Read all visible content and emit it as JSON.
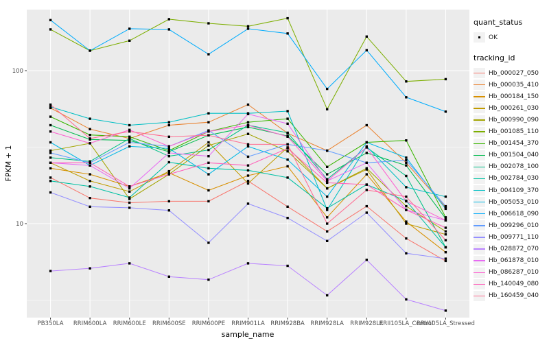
{
  "figure": {
    "background": "#FFFFFF",
    "panel_background": "#EBEBEB",
    "gridline_color": "#FFFFFF",
    "tick_color": "#333333",
    "tick_label_color": "#4D4D4D",
    "point_color": "#000000"
  },
  "chart_data": {
    "type": "line",
    "title": "",
    "xlabel": "sample_name",
    "ylabel": "FPKM + 1",
    "y_scale": "log10",
    "y_ticks": [
      10,
      100
    ],
    "y_minor_ticks": [
      3.1623,
      31.623
    ],
    "y_range": [
      2.4,
      250
    ],
    "grid": true,
    "legend_position": "right",
    "categories": [
      "PB350LA",
      "RRIM600LA",
      "RRIM600LE",
      "RRIM600SE",
      "RRIM600PE",
      "RRIM901LA",
      "RRIM928BA",
      "RRIM928LA",
      "RRIM928LE",
      "RRII105LA_Control",
      "RRII105LA_Stressed"
    ],
    "legend": {
      "quant_status_title": "quant_status",
      "quant_status_items": [
        {
          "label": "OK",
          "marker": "point"
        }
      ],
      "tracking_id_title": "tracking_id"
    },
    "series": [
      {
        "name": "Hb_000027_050",
        "color": "#F8766D",
        "values": [
          20,
          14.7,
          13.7,
          14,
          14,
          19,
          12.9,
          8.9,
          13,
          8,
          5.7
        ]
      },
      {
        "name": "Hb_000035_410",
        "color": "#EA8331",
        "values": [
          57,
          41.5,
          36,
          44,
          46,
          60,
          39,
          30,
          44,
          25,
          12.8
        ]
      },
      {
        "name": "Hb_000184_150",
        "color": "#D89000",
        "values": [
          23,
          21,
          17.5,
          21.5,
          16.5,
          20.6,
          23.7,
          11,
          21,
          10.3,
          6.5
        ]
      },
      {
        "name": "Hb_000261_030",
        "color": "#C09B00",
        "values": [
          25,
          19,
          16.2,
          22,
          34,
          18.3,
          31.5,
          17,
          22.6,
          10,
          8.5
        ]
      },
      {
        "name": "Hb_000990_090",
        "color": "#A3A500",
        "values": [
          30,
          33.5,
          14.5,
          21,
          32.4,
          38.6,
          29.7,
          17,
          23,
          13,
          8.9
        ]
      },
      {
        "name": "Hb_001085_110",
        "color": "#7CAE00",
        "values": [
          186,
          135,
          157,
          217,
          204,
          195,
          220,
          56,
          167,
          85,
          88
        ]
      },
      {
        "name": "Hb_001454_370",
        "color": "#39B600",
        "values": [
          50,
          38,
          37,
          30,
          40,
          46,
          48.5,
          23.5,
          34,
          35,
          11
        ]
      },
      {
        "name": "Hb_001504_040",
        "color": "#00BB4E",
        "values": [
          44,
          35.5,
          35,
          29.5,
          37.8,
          42.8,
          37.4,
          21,
          29,
          24,
          10.8
        ]
      },
      {
        "name": "Hb_002078_100",
        "color": "#00C087",
        "values": [
          27,
          25.5,
          36,
          27.6,
          30.3,
          44,
          39.3,
          19.5,
          31.5,
          20.5,
          7
        ]
      },
      {
        "name": "Hb_002784_030",
        "color": "#00C1A3",
        "values": [
          19,
          17.5,
          14.8,
          25.2,
          23,
          22.3,
          20,
          12.6,
          18,
          14.1,
          7
        ]
      },
      {
        "name": "Hb_004109_370",
        "color": "#00BFC4",
        "values": [
          58,
          48.5,
          44,
          46,
          52.6,
          52.6,
          54.4,
          12.3,
          32,
          17.3,
          15
        ]
      },
      {
        "name": "Hb_005053_010",
        "color": "#00B8E5",
        "values": [
          34,
          24,
          32,
          31,
          21,
          32,
          26.2,
          15,
          34,
          27,
          12.5
        ]
      },
      {
        "name": "Hb_006618_090",
        "color": "#00ACFC",
        "values": [
          214,
          135,
          188,
          186,
          128,
          188,
          175,
          76,
          136,
          67,
          54
        ]
      },
      {
        "name": "Hb_009296_010",
        "color": "#619CFF",
        "values": [
          29,
          25,
          34,
          32,
          40.7,
          27.4,
          33,
          30,
          25,
          26,
          13
        ]
      },
      {
        "name": "Hb_009771_110",
        "color": "#9590FF",
        "values": [
          16,
          12.9,
          12.7,
          12.2,
          7.5,
          13.5,
          10.9,
          7.7,
          11.8,
          6.4,
          5.9
        ]
      },
      {
        "name": "Hb_028872_070",
        "color": "#B983FF",
        "values": [
          4.9,
          5.1,
          5.5,
          4.5,
          4.3,
          5.5,
          5.3,
          3.4,
          5.8,
          3.2,
          2.7
        ]
      },
      {
        "name": "Hb_061878_010",
        "color": "#E76BF3",
        "values": [
          25,
          24,
          17,
          29,
          27.6,
          52,
          45,
          19,
          25,
          12.3,
          10.5
        ]
      },
      {
        "name": "Hb_086287_010",
        "color": "#FD61D1",
        "values": [
          40,
          33.5,
          41,
          32,
          40,
          44,
          37,
          19,
          31.5,
          14,
          10.5
        ]
      },
      {
        "name": "Hb_140049_080",
        "color": "#FF62BB",
        "values": [
          25,
          25,
          17.5,
          21,
          25,
          24,
          31,
          18.5,
          18,
          12.3,
          9.4
        ]
      },
      {
        "name": "Hb_160459_040",
        "color": "#FF6C91",
        "values": [
          60,
          36,
          40,
          37,
          37.8,
          33,
          33,
          10,
          16.6,
          15,
          7.8
        ]
      }
    ]
  }
}
